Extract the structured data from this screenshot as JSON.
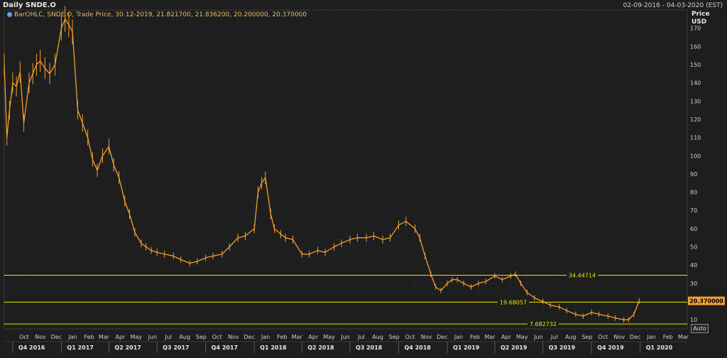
{
  "window": {
    "title": "Daily SNDE.O",
    "date_range": "02-09-2016 - 04-03-2020 (EST)",
    "legend_text": "BarOHLC, SNDE.O, Trade Price, 30-12-2019, 21.821700, 21.836200, 20.200000, 20.370000",
    "auto_button": "Auto"
  },
  "colors": {
    "background": "#1e1e1e",
    "price": "#f0a030",
    "hline": "#e6e600",
    "last_price_box": "#f0a030",
    "grid": "#2f2f2f"
  },
  "chart_data": {
    "type": "line",
    "title": "Daily SNDE.O",
    "ylabel": [
      "Price",
      "USD"
    ],
    "ylim": [
      5,
      180
    ],
    "yticks": [
      10,
      20,
      30,
      40,
      50,
      60,
      70,
      80,
      90,
      100,
      110,
      120,
      130,
      140,
      150,
      160,
      170
    ],
    "xlim": [
      "2016-09-15",
      "2020-03-30"
    ],
    "month_ticks": [
      {
        "label": "Oct",
        "date": "2016-10-01"
      },
      {
        "label": "Nov",
        "date": "2016-11-01"
      },
      {
        "label": "Dec",
        "date": "2016-12-01"
      },
      {
        "label": "Jan",
        "date": "2017-01-01"
      },
      {
        "label": "Feb",
        "date": "2017-02-01"
      },
      {
        "label": "Mar",
        "date": "2017-03-01"
      },
      {
        "label": "Apr",
        "date": "2017-04-01"
      },
      {
        "label": "May",
        "date": "2017-05-01"
      },
      {
        "label": "Jun",
        "date": "2017-06-01"
      },
      {
        "label": "Jul",
        "date": "2017-07-01"
      },
      {
        "label": "Aug",
        "date": "2017-08-01"
      },
      {
        "label": "Sep",
        "date": "2017-09-01"
      },
      {
        "label": "Oct",
        "date": "2017-10-01"
      },
      {
        "label": "Nov",
        "date": "2017-11-01"
      },
      {
        "label": "Dec",
        "date": "2017-12-01"
      },
      {
        "label": "Jan",
        "date": "2018-01-01"
      },
      {
        "label": "Feb",
        "date": "2018-02-01"
      },
      {
        "label": "Mar",
        "date": "2018-03-01"
      },
      {
        "label": "Apr",
        "date": "2018-04-01"
      },
      {
        "label": "May",
        "date": "2018-05-01"
      },
      {
        "label": "Jun",
        "date": "2018-06-01"
      },
      {
        "label": "Jul",
        "date": "2018-07-01"
      },
      {
        "label": "Aug",
        "date": "2018-08-01"
      },
      {
        "label": "Sep",
        "date": "2018-09-01"
      },
      {
        "label": "Oct",
        "date": "2018-10-01"
      },
      {
        "label": "Nov",
        "date": "2018-11-01"
      },
      {
        "label": "Dec",
        "date": "2018-12-01"
      },
      {
        "label": "Jan",
        "date": "2019-01-01"
      },
      {
        "label": "Feb",
        "date": "2019-02-01"
      },
      {
        "label": "Mar",
        "date": "2019-03-01"
      },
      {
        "label": "Apr",
        "date": "2019-04-01"
      },
      {
        "label": "May",
        "date": "2019-05-01"
      },
      {
        "label": "Jun",
        "date": "2019-06-01"
      },
      {
        "label": "Jul",
        "date": "2019-07-01"
      },
      {
        "label": "Aug",
        "date": "2019-08-01"
      },
      {
        "label": "Sep",
        "date": "2019-09-01"
      },
      {
        "label": "Oct",
        "date": "2019-10-01"
      },
      {
        "label": "Nov",
        "date": "2019-11-01"
      },
      {
        "label": "Dec",
        "date": "2019-12-01"
      },
      {
        "label": "Jan",
        "date": "2020-01-01"
      },
      {
        "label": "Feb",
        "date": "2020-02-01"
      },
      {
        "label": "Mar",
        "date": "2020-03-01"
      }
    ],
    "quarter_ticks": [
      {
        "label": "Q4 2016",
        "start": "2016-10-01"
      },
      {
        "label": "Q1 2017",
        "start": "2017-01-01"
      },
      {
        "label": "Q2 2017",
        "start": "2017-04-01"
      },
      {
        "label": "Q3 2017",
        "start": "2017-07-01"
      },
      {
        "label": "Q4 2017",
        "start": "2017-10-01"
      },
      {
        "label": "Q1 2018",
        "start": "2018-01-01"
      },
      {
        "label": "Q2 2018",
        "start": "2018-04-01"
      },
      {
        "label": "Q3 2018",
        "start": "2018-07-01"
      },
      {
        "label": "Q4 2018",
        "start": "2018-10-01"
      },
      {
        "label": "Q1 2019",
        "start": "2019-01-01"
      },
      {
        "label": "Q2 2019",
        "start": "2019-04-01"
      },
      {
        "label": "Q3 2019",
        "start": "2019-07-01"
      },
      {
        "label": "Q4 2019",
        "start": "2019-10-01"
      },
      {
        "label": "Q1 2020",
        "start": "2020-01-01"
      }
    ],
    "horizontal_lines": [
      {
        "value": 34.44714,
        "label": "34.44714"
      },
      {
        "value": 19.68057,
        "label": "19.68057"
      },
      {
        "value": 7.682732,
        "label": "7.682732"
      }
    ],
    "last_price": {
      "value": 20.37,
      "label": "20.370000"
    },
    "series": [
      {
        "type": "ohlc",
        "x": [
          "2016-09-15",
          "2016-09-20",
          "2016-09-25",
          "2016-10-01",
          "2016-10-08",
          "2016-10-15",
          "2016-10-22",
          "2016-11-01",
          "2016-11-08",
          "2016-11-15",
          "2016-11-22",
          "2016-12-01",
          "2016-12-10",
          "2016-12-20",
          "2017-01-01",
          "2017-01-08",
          "2017-01-15",
          "2017-01-22",
          "2017-02-01",
          "2017-02-10",
          "2017-02-20",
          "2017-03-01",
          "2017-03-10",
          "2017-03-20",
          "2017-04-01",
          "2017-04-10",
          "2017-04-20",
          "2017-05-01",
          "2017-05-10",
          "2017-05-20",
          "2017-06-01",
          "2017-06-10",
          "2017-06-20",
          "2017-07-01",
          "2017-07-15",
          "2017-08-01",
          "2017-08-15",
          "2017-09-01",
          "2017-09-15",
          "2017-10-01",
          "2017-10-15",
          "2017-11-01",
          "2017-11-15",
          "2017-12-01",
          "2017-12-15",
          "2018-01-01",
          "2018-01-08",
          "2018-01-15",
          "2018-01-22",
          "2018-02-01",
          "2018-02-08",
          "2018-02-20",
          "2018-03-01",
          "2018-03-15",
          "2018-04-01",
          "2018-04-15",
          "2018-05-01",
          "2018-05-15",
          "2018-06-01",
          "2018-06-15",
          "2018-07-01",
          "2018-07-15",
          "2018-08-01",
          "2018-08-15",
          "2018-09-01",
          "2018-09-15",
          "2018-10-01",
          "2018-10-15",
          "2018-11-01",
          "2018-11-10",
          "2018-11-20",
          "2018-12-01",
          "2018-12-10",
          "2018-12-20",
          "2019-01-01",
          "2019-01-10",
          "2019-01-20",
          "2019-02-01",
          "2019-02-15",
          "2019-03-01",
          "2019-03-15",
          "2019-04-01",
          "2019-04-15",
          "2019-05-01",
          "2019-05-10",
          "2019-05-20",
          "2019-06-01",
          "2019-06-15",
          "2019-07-01",
          "2019-07-15",
          "2019-08-01",
          "2019-08-15",
          "2019-09-01",
          "2019-09-15",
          "2019-10-01",
          "2019-10-15",
          "2019-11-01",
          "2019-11-15",
          "2019-12-01",
          "2019-12-10",
          "2019-12-20",
          "2019-12-30"
        ],
        "y": [
          150,
          110,
          125,
          140,
          138,
          146,
          118,
          140,
          145,
          150,
          152,
          148,
          145,
          150,
          170,
          175,
          172,
          168,
          125,
          118,
          110,
          98,
          92,
          100,
          105,
          95,
          88,
          75,
          68,
          58,
          52,
          50,
          48,
          47,
          46,
          45,
          43,
          41,
          42,
          44,
          45,
          46,
          50,
          55,
          56,
          60,
          80,
          85,
          88,
          68,
          60,
          57,
          55,
          54,
          46,
          46,
          48,
          47,
          50,
          52,
          54,
          55,
          55,
          56,
          54,
          55,
          62,
          64,
          60,
          55,
          45,
          35,
          28,
          26,
          30,
          32,
          32,
          30,
          28,
          30,
          31,
          34,
          32,
          34,
          35,
          30,
          25,
          22,
          20,
          18,
          17,
          15,
          13,
          12,
          14,
          13,
          12,
          11,
          10,
          10,
          13,
          20.37
        ]
      }
    ]
  }
}
